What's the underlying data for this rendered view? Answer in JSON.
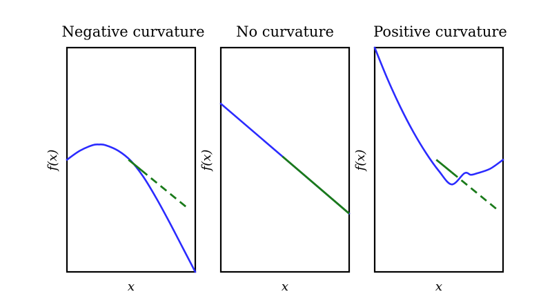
{
  "chart_data": [
    {
      "type": "line",
      "title": "Negative curvature",
      "xlabel": "x",
      "ylabel": "f(x)",
      "xlim": [
        0,
        1
      ],
      "ylim": [
        0,
        1
      ],
      "grid": false,
      "series": [
        {
          "role": "function",
          "color": "#2b2bff",
          "x": [
            0.0,
            0.1,
            0.2,
            0.25,
            0.3,
            0.4,
            0.5,
            0.6,
            0.7,
            0.8,
            0.9,
            1.0
          ],
          "y": [
            0.5,
            0.54,
            0.565,
            0.568,
            0.565,
            0.54,
            0.494,
            0.42,
            0.325,
            0.22,
            0.11,
            0.0
          ]
        },
        {
          "role": "tangent",
          "color": "#1a7a1a",
          "dashed_from": 0.58,
          "x": [
            0.48,
            0.95
          ],
          "y": [
            0.5,
            0.28
          ]
        }
      ]
    },
    {
      "type": "line",
      "title": "No curvature",
      "xlabel": "x",
      "ylabel": "f(x)",
      "xlim": [
        0,
        1
      ],
      "ylim": [
        0,
        1
      ],
      "grid": false,
      "series": [
        {
          "role": "function",
          "color": "#2b2bff",
          "x": [
            0.0,
            1.0
          ],
          "y": [
            0.75,
            0.26
          ]
        },
        {
          "role": "tangent",
          "color": "#1a7a1a",
          "dashed_from": null,
          "x": [
            0.48,
            1.0
          ],
          "y": [
            0.515,
            0.26
          ]
        }
      ]
    },
    {
      "type": "line",
      "title": "Positive curvature",
      "xlabel": "x",
      "ylabel": "f(x)",
      "xlim": [
        0,
        1
      ],
      "ylim": [
        0,
        1
      ],
      "grid": false,
      "series": [
        {
          "role": "function",
          "color": "#2b2bff",
          "x": [
            0.0,
            0.1,
            0.2,
            0.3,
            0.4,
            0.5,
            0.6,
            0.7,
            0.75,
            0.8,
            0.9,
            1.0
          ],
          "y": [
            1.0,
            0.86,
            0.735,
            0.625,
            0.53,
            0.45,
            0.39,
            0.44,
            0.433,
            0.44,
            0.46,
            0.5
          ]
        },
        {
          "role": "tangent",
          "color": "#1a7a1a",
          "dashed_from": 0.6,
          "x": [
            0.48,
            0.95
          ],
          "y": [
            0.5,
            0.28
          ]
        }
      ]
    }
  ]
}
